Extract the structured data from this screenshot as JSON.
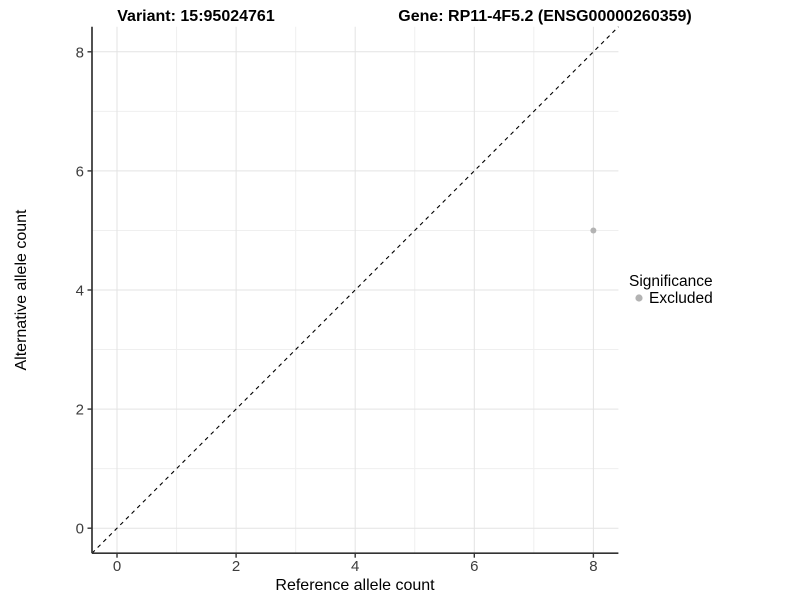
{
  "colors": {
    "background": "#ffffff",
    "grid_major": "#e3e3e3",
    "grid_minor": "#efefef",
    "axis": "#333333",
    "tick_label": "#3d3d3d",
    "point": "#b3b3b3",
    "reference_line": "#000000"
  },
  "chart_data": {
    "type": "scatter",
    "titles": {
      "left": "Variant: 15:95024761",
      "right": "Gene: RP11-4F5.2 (ENSG00000260359)"
    },
    "xlabel": "Reference allele count",
    "ylabel": "Alternative allele count",
    "x_ticks": [
      0,
      2,
      4,
      6,
      8
    ],
    "y_ticks": [
      0,
      2,
      4,
      6,
      8
    ],
    "x_minor_ticks": [
      1,
      3,
      5,
      7
    ],
    "y_minor_ticks": [
      1,
      3,
      5,
      7
    ],
    "xlim": [
      -0.42,
      8.42
    ],
    "ylim": [
      -0.42,
      8.42
    ],
    "grid": "major+minor",
    "reference_line": {
      "type": "identity y=x",
      "style": "dashed",
      "color": "#000000"
    },
    "series": [
      {
        "name": "Excluded",
        "color": "#b3b3b3",
        "points": [
          {
            "x": 8,
            "y": 5
          }
        ]
      }
    ],
    "legend": {
      "title": "Significance",
      "position": "right",
      "items": [
        {
          "label": "Excluded",
          "color": "#b3b3b3"
        }
      ]
    }
  }
}
